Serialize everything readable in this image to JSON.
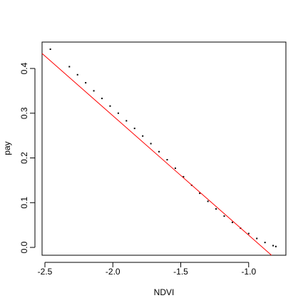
{
  "chart_data": {
    "type": "scatter",
    "x_label": "NDVI",
    "y_label": "pay",
    "x": [
      -2.46,
      -2.32,
      -2.26,
      -2.2,
      -2.14,
      -2.08,
      -2.02,
      -1.96,
      -1.9,
      -1.84,
      -1.78,
      -1.72,
      -1.66,
      -1.6,
      -1.54,
      -1.48,
      -1.42,
      -1.36,
      -1.3,
      -1.24,
      -1.18,
      -1.12,
      -1.06,
      -1.0,
      -0.94,
      -0.88,
      -0.82,
      -0.8
    ],
    "values": [
      0.443,
      0.404,
      0.386,
      0.368,
      0.35,
      0.333,
      0.316,
      0.3,
      0.283,
      0.266,
      0.249,
      0.232,
      0.214,
      0.196,
      0.177,
      0.158,
      0.139,
      0.121,
      0.103,
      0.086,
      0.07,
      0.056,
      0.043,
      0.031,
      0.02,
      0.011,
      0.004,
      0.002
    ],
    "color": "#000000",
    "fit_line": {
      "x": [
        -2.521,
        -0.832
      ],
      "values": [
        0.4335,
        -0.0175
      ],
      "color": "#ff0000"
    },
    "xlim": [
      -2.521,
      -0.726
    ],
    "ylim": [
      -0.0175,
      0.459
    ],
    "xticks": [
      -2.5,
      {
        "value": -2.0,
        "label": "-2.0"
      },
      -1.5,
      {
        "value": -1.0,
        "label": "-1.0"
      }
    ],
    "yticks": [
      {
        "value": 0,
        "label": "0.0"
      },
      0.1,
      0.2,
      0.3,
      0.4
    ]
  }
}
